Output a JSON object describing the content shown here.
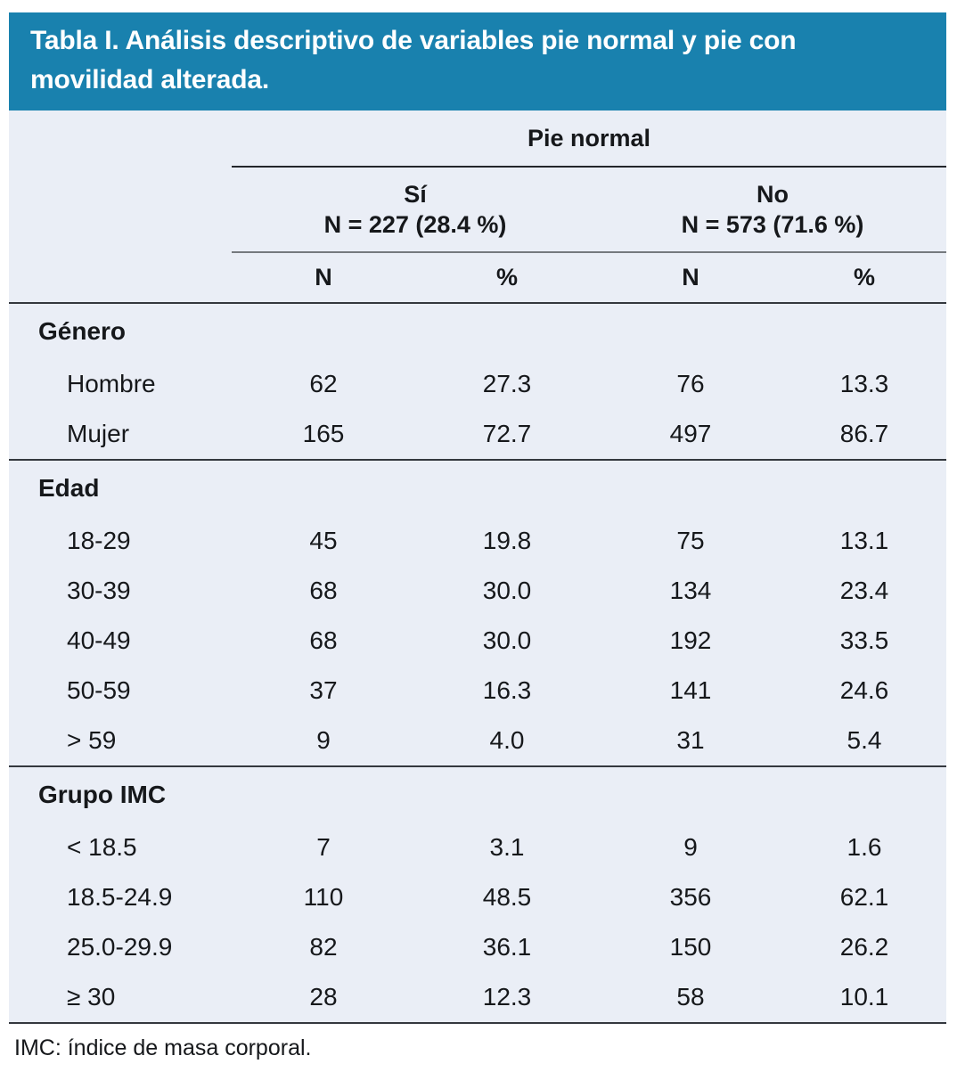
{
  "title_bar": {
    "text": "Tabla I. Análisis descriptivo de variables pie normal y pie con movilidad alterada."
  },
  "table": {
    "group_header": "Pie normal",
    "subgroups": [
      {
        "label": "Sí",
        "n_line": "N = 227 (28.4 %)"
      },
      {
        "label": "No",
        "n_line": "N = 573 (71.6 %)"
      }
    ],
    "column_headers": [
      "N",
      "%",
      "N",
      "%"
    ],
    "sections": [
      {
        "header": "Género",
        "rows": [
          {
            "label": "Hombre",
            "values": [
              "62",
              "27.3",
              "76",
              "13.3"
            ]
          },
          {
            "label": "Mujer",
            "values": [
              "165",
              "72.7",
              "497",
              "86.7"
            ]
          }
        ]
      },
      {
        "header": "Edad",
        "rows": [
          {
            "label": "18-29",
            "values": [
              "45",
              "19.8",
              "75",
              "13.1"
            ]
          },
          {
            "label": "30-39",
            "values": [
              "68",
              "30.0",
              "134",
              "23.4"
            ]
          },
          {
            "label": "40-49",
            "values": [
              "68",
              "30.0",
              "192",
              "33.5"
            ]
          },
          {
            "label": "50-59",
            "values": [
              "37",
              "16.3",
              "141",
              "24.6"
            ]
          },
          {
            "label": "> 59",
            "values": [
              "9",
              "4.0",
              "31",
              "5.4"
            ]
          }
        ]
      },
      {
        "header": "Grupo IMC",
        "rows": [
          {
            "label": "< 18.5",
            "values": [
              "7",
              "3.1",
              "9",
              "1.6"
            ]
          },
          {
            "label": "18.5-24.9",
            "values": [
              "110",
              "48.5",
              "356",
              "62.1"
            ]
          },
          {
            "label": "25.0-29.9",
            "values": [
              "82",
              "36.1",
              "150",
              "26.2"
            ]
          },
          {
            "label": "≥ 30",
            "values": [
              "28",
              "12.3",
              "58",
              "10.1"
            ]
          }
        ]
      }
    ]
  },
  "footnote": "IMC: índice de masa corporal.",
  "colors": {
    "accent_blue": "#1981ae",
    "table_background": "#eaeef6",
    "rule_dark": "#34383e",
    "rule_gray": "#75797e",
    "text": "#16181b",
    "title_text": "#ffffff"
  }
}
